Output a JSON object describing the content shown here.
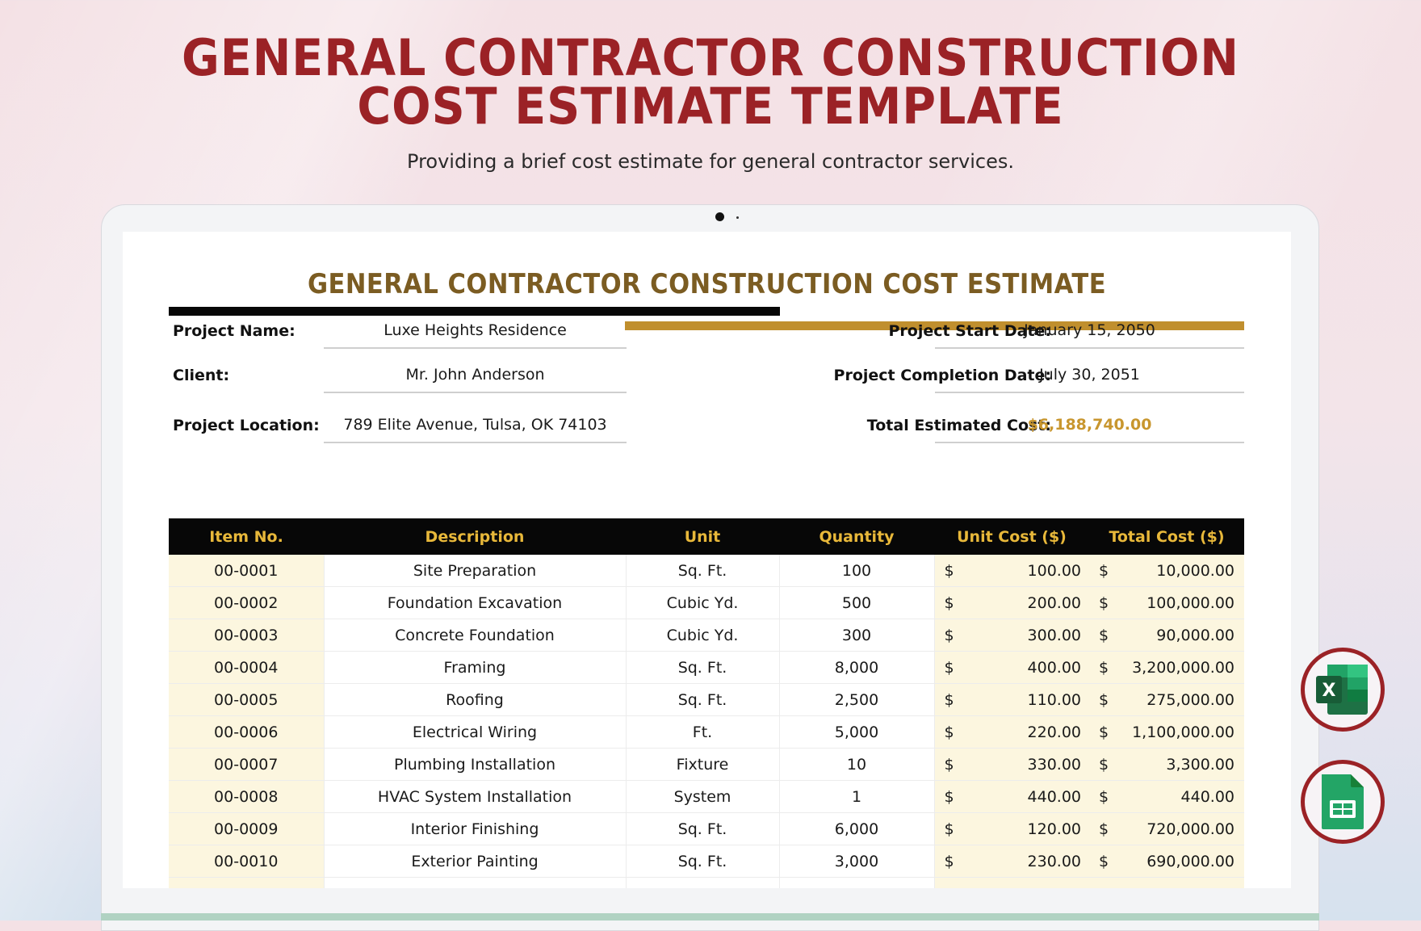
{
  "hero": {
    "title_line1": "GENERAL CONTRACTOR CONSTRUCTION",
    "title_line2": "COST ESTIMATE TEMPLATE",
    "subtitle": "Providing a brief cost estimate for general contractor services."
  },
  "document": {
    "title": "GENERAL CONTRACTOR CONSTRUCTION COST ESTIMATE",
    "info_left": [
      {
        "label": "Project Name:",
        "value": "Luxe Heights Residence"
      },
      {
        "label": "Client:",
        "value": "Mr. John Anderson"
      },
      {
        "label": "Project Location:",
        "value": "789 Elite Avenue, Tulsa, OK 74103"
      }
    ],
    "info_right": [
      {
        "label": "Project Start Date:",
        "value": "January 15, 2050"
      },
      {
        "label": "Project Completion Date:",
        "value": "July 30, 2051"
      },
      {
        "label": "Total Estimated Cost:",
        "value": "$6,188,740.00"
      }
    ],
    "table": {
      "headers": [
        "Item No.",
        "Description",
        "Unit",
        "Quantity",
        "Unit Cost ($)",
        "Total Cost ($)"
      ],
      "currency_symbol": "$",
      "rows": [
        {
          "item": "00-0001",
          "description": "Site Preparation",
          "unit": "Sq. Ft.",
          "quantity": "100",
          "unit_cost": "100.00",
          "total_cost": "10,000.00"
        },
        {
          "item": "00-0002",
          "description": "Foundation Excavation",
          "unit": "Cubic Yd.",
          "quantity": "500",
          "unit_cost": "200.00",
          "total_cost": "100,000.00"
        },
        {
          "item": "00-0003",
          "description": "Concrete Foundation",
          "unit": "Cubic Yd.",
          "quantity": "300",
          "unit_cost": "300.00",
          "total_cost": "90,000.00"
        },
        {
          "item": "00-0004",
          "description": "Framing",
          "unit": "Sq. Ft.",
          "quantity": "8,000",
          "unit_cost": "400.00",
          "total_cost": "3,200,000.00"
        },
        {
          "item": "00-0005",
          "description": "Roofing",
          "unit": "Sq. Ft.",
          "quantity": "2,500",
          "unit_cost": "110.00",
          "total_cost": "275,000.00"
        },
        {
          "item": "00-0006",
          "description": "Electrical Wiring",
          "unit": "Ft.",
          "quantity": "5,000",
          "unit_cost": "220.00",
          "total_cost": "1,100,000.00"
        },
        {
          "item": "00-0007",
          "description": "Plumbing Installation",
          "unit": "Fixture",
          "quantity": "10",
          "unit_cost": "330.00",
          "total_cost": "3,300.00"
        },
        {
          "item": "00-0008",
          "description": "HVAC System Installation",
          "unit": "System",
          "quantity": "1",
          "unit_cost": "440.00",
          "total_cost": "440.00"
        },
        {
          "item": "00-0009",
          "description": "Interior Finishing",
          "unit": "Sq. Ft.",
          "quantity": "6,000",
          "unit_cost": "120.00",
          "total_cost": "720,000.00"
        },
        {
          "item": "00-0010",
          "description": "Exterior Painting",
          "unit": "Sq. Ft.",
          "quantity": "3,000",
          "unit_cost": "230.00",
          "total_cost": "690,000.00"
        },
        {
          "item": "",
          "description": "",
          "unit": "",
          "quantity": "",
          "unit_cost": "",
          "total_cost": "",
          "partial_currency": "$"
        }
      ]
    }
  },
  "app_badges": [
    {
      "name": "excel-icon",
      "letter": "X"
    },
    {
      "name": "google-sheets-icon"
    }
  ],
  "colors": {
    "hero_title": "#9b2226",
    "doc_title": "#7b5c22",
    "gold_accent": "#c08f2e",
    "header_bg": "#070707",
    "header_text": "#e8b83a",
    "highlight_col": "#fcf6df",
    "total_cost_text": "#c8962e"
  }
}
